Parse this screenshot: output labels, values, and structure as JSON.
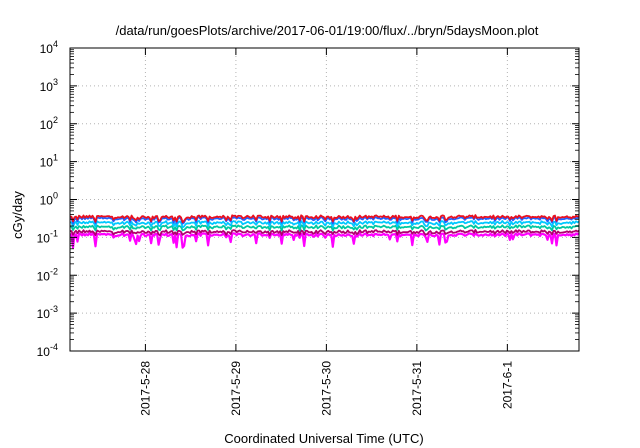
{
  "chart_data": {
    "type": "line",
    "title": "/data/run/goesPlots/archive/2017-06-01/19:00/flux/../bryn/5daysMoon.plot",
    "xlabel": "Coordinated Universal Time (UTC)",
    "ylabel": "cGy/day",
    "yscale": "log",
    "ylim": [
      0.0001,
      10000
    ],
    "xlim": [
      "2017-05-27 04:00",
      "2017-06-01 19:00"
    ],
    "grid": true,
    "y_ticks": [
      {
        "base": "10",
        "exp": "4"
      },
      {
        "base": "10",
        "exp": "3"
      },
      {
        "base": "10",
        "exp": "2"
      },
      {
        "base": "10",
        "exp": "1"
      },
      {
        "base": "10",
        "exp": "0"
      },
      {
        "base": "10",
        "exp": "-1"
      },
      {
        "base": "10",
        "exp": "-2"
      },
      {
        "base": "10",
        "exp": "-3"
      },
      {
        "base": "10",
        "exp": "-4"
      }
    ],
    "x_ticks": [
      {
        "label": "2017-5-28",
        "value": "2017-05-28 00:00"
      },
      {
        "label": "2017-5-29",
        "value": "2017-05-29 00:00"
      },
      {
        "label": "2017-5-30",
        "value": "2017-05-30 00:00"
      },
      {
        "label": "2017-5-31",
        "value": "2017-05-31 00:00"
      },
      {
        "label": "2017-6-1",
        "value": "2017-06-01 00:00"
      }
    ],
    "series": [
      {
        "color": "#ff00ff",
        "base": 0.118,
        "dips": 0.8
      },
      {
        "color": "#b0006e",
        "base": 0.142,
        "dips": 0.25
      },
      {
        "color": "#00c8a0",
        "base": 0.19,
        "dips": 0.3
      },
      {
        "color": "#00c8ff",
        "base": 0.245,
        "dips": 0.35
      },
      {
        "color": "#2060ff",
        "base": 0.315,
        "dips": 0.4
      },
      {
        "color": "#e81020",
        "base": 0.35,
        "dips": 0.4
      }
    ]
  }
}
